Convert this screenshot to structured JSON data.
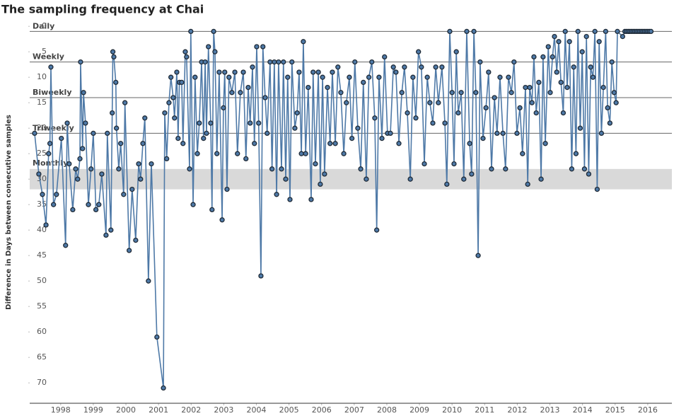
{
  "chart_data": {
    "type": "line",
    "title": "The sampling frequency at Chai",
    "y_label": "Difference in Days between consecutive samples",
    "reverse_y": true,
    "color": "#4e79a7",
    "marker_edge": "#1f2a36",
    "band_color": "#d9d9d9",
    "xlim": [
      1997.55,
      2017.24
    ],
    "xticks": [
      {
        "value": 1998.5,
        "label": "1998"
      },
      {
        "value": 1999.5,
        "label": "1999"
      },
      {
        "value": 2000.5,
        "label": "2000"
      },
      {
        "value": 2001.5,
        "label": "2001"
      },
      {
        "value": 2002.5,
        "label": "2002"
      },
      {
        "value": 2003.5,
        "label": "2003"
      },
      {
        "value": 2004.5,
        "label": "2004"
      },
      {
        "value": 2005.5,
        "label": "2005"
      },
      {
        "value": 2006.5,
        "label": "2006"
      },
      {
        "value": 2007.5,
        "label": "2007"
      },
      {
        "value": 2008.5,
        "label": "2008"
      },
      {
        "value": 2009.5,
        "label": "2009"
      },
      {
        "value": 2010.5,
        "label": "2010"
      },
      {
        "value": 2011.5,
        "label": "2011"
      },
      {
        "value": 2012.5,
        "label": "2012"
      },
      {
        "value": 2013.5,
        "label": "2013"
      },
      {
        "value": 2014.5,
        "label": "2014"
      },
      {
        "value": 2015.5,
        "label": "2015"
      },
      {
        "value": 2016.5,
        "label": "2016"
      }
    ],
    "ylim": [
      -1,
      74
    ],
    "yticks": [
      0,
      5,
      10,
      15,
      20,
      25,
      30,
      35,
      40,
      45,
      50,
      55,
      60,
      65,
      70
    ],
    "reference_lines": [
      {
        "label": "Daily",
        "value": 1
      },
      {
        "label": "Weekly",
        "value": 7
      },
      {
        "label": "Biweekly",
        "value": 14
      },
      {
        "label": "Triweekly",
        "value": 21
      }
    ],
    "band": {
      "label": "Monthly",
      "from": 28,
      "to": 32
    },
    "x": [
      1997.7,
      1997.83,
      1997.94,
      1998.05,
      1998.13,
      1998.17,
      1998.2,
      1998.28,
      1998.37,
      1998.52,
      1998.65,
      1998.7,
      1998.76,
      1998.87,
      1998.96,
      1999.02,
      1999.09,
      1999.11,
      1999.17,
      1999.2,
      1999.26,
      1999.35,
      1999.43,
      1999.5,
      1999.58,
      1999.67,
      1999.76,
      1999.89,
      1999.93,
      2000.04,
      2000.08,
      2000.1,
      2000.13,
      2000.19,
      2000.21,
      2000.28,
      2000.34,
      2000.43,
      2000.47,
      2000.6,
      2000.69,
      2000.8,
      2000.89,
      2000.95,
      2001.02,
      2001.08,
      2001.19,
      2001.28,
      2001.45,
      2001.65,
      2001.69,
      2001.75,
      2001.82,
      2001.88,
      2001.95,
      2001.99,
      2002.06,
      2002.1,
      2002.14,
      2002.21,
      2002.25,
      2002.32,
      2002.36,
      2002.45,
      2002.49,
      2002.56,
      2002.62,
      2002.69,
      2002.75,
      2002.82,
      2002.88,
      2002.93,
      2002.97,
      2003.03,
      2003.1,
      2003.14,
      2003.19,
      2003.23,
      2003.29,
      2003.36,
      2003.45,
      2003.49,
      2003.53,
      2003.6,
      2003.66,
      2003.75,
      2003.84,
      2003.92,
      2004.01,
      2004.1,
      2004.18,
      2004.25,
      2004.31,
      2004.38,
      2004.44,
      2004.51,
      2004.57,
      2004.64,
      2004.7,
      2004.77,
      2004.83,
      2004.92,
      2004.98,
      2005.05,
      2005.12,
      2005.18,
      2005.27,
      2005.33,
      2005.4,
      2005.46,
      2005.53,
      2005.59,
      2005.68,
      2005.75,
      2005.81,
      2005.88,
      2005.94,
      2006.01,
      2006.09,
      2006.18,
      2006.24,
      2006.31,
      2006.4,
      2006.46,
      2006.53,
      2006.59,
      2006.68,
      2006.76,
      2006.83,
      2006.92,
      2007.0,
      2007.09,
      2007.18,
      2007.26,
      2007.35,
      2007.43,
      2007.52,
      2007.61,
      2007.7,
      2007.78,
      2007.87,
      2007.95,
      2008.04,
      2008.13,
      2008.19,
      2008.26,
      2008.35,
      2008.43,
      2008.52,
      2008.61,
      2008.7,
      2008.78,
      2008.87,
      2008.96,
      2009.04,
      2009.13,
      2009.22,
      2009.3,
      2009.39,
      2009.47,
      2009.56,
      2009.65,
      2009.74,
      2009.82,
      2009.91,
      2010.0,
      2010.08,
      2010.19,
      2010.28,
      2010.34,
      2010.43,
      2010.5,
      2010.56,
      2010.63,
      2010.69,
      2010.78,
      2010.86,
      2010.95,
      2011.04,
      2011.1,
      2011.17,
      2011.23,
      2011.3,
      2011.36,
      2011.45,
      2011.54,
      2011.62,
      2011.71,
      2011.8,
      2011.88,
      2011.97,
      2012.06,
      2012.14,
      2012.23,
      2012.32,
      2012.4,
      2012.49,
      2012.58,
      2012.66,
      2012.75,
      2012.82,
      2012.88,
      2012.95,
      2013.01,
      2013.08,
      2013.16,
      2013.23,
      2013.29,
      2013.36,
      2013.45,
      2013.51,
      2013.58,
      2013.64,
      2013.71,
      2013.77,
      2013.84,
      2013.91,
      2013.97,
      2014.03,
      2014.1,
      2014.17,
      2014.23,
      2014.3,
      2014.36,
      2014.43,
      2014.49,
      2014.56,
      2014.62,
      2014.69,
      2014.75,
      2014.82,
      2014.88,
      2014.95,
      2015.01,
      2015.08,
      2015.14,
      2015.21,
      2015.27,
      2015.34,
      2015.4,
      2015.47,
      2015.53,
      2015.57,
      2015.73,
      2015.8,
      2015.85,
      2015.9,
      2015.95,
      2016.0,
      2016.05,
      2016.1,
      2016.15,
      2016.2,
      2016.25,
      2016.3,
      2016.35,
      2016.4,
      2016.45,
      2016.5,
      2016.55,
      2016.6
    ],
    "values": [
      21,
      29,
      33,
      39,
      25,
      23,
      8,
      35,
      33,
      22,
      43,
      19,
      27,
      36,
      28,
      30,
      26,
      7,
      24,
      13,
      19,
      35,
      28,
      21,
      36,
      35,
      29,
      41,
      21,
      40,
      17,
      5,
      6,
      11,
      20,
      28,
      23,
      33,
      15,
      44,
      32,
      42,
      27,
      30,
      23,
      18,
      50,
      27,
      61,
      71,
      17,
      26,
      15,
      10,
      14,
      18,
      9,
      22,
      11,
      11,
      23,
      5,
      6,
      28,
      1,
      35,
      10,
      25,
      19,
      7,
      22,
      7,
      21,
      4,
      19,
      36,
      1,
      5,
      25,
      9,
      38,
      16,
      9,
      32,
      10,
      13,
      9,
      25,
      13,
      9,
      26,
      12,
      19,
      8,
      23,
      4,
      19,
      49,
      4,
      14,
      21,
      7,
      28,
      7,
      33,
      7,
      28,
      7,
      30,
      10,
      34,
      7,
      20,
      17,
      9,
      25,
      3,
      25,
      12,
      34,
      9,
      27,
      9,
      31,
      10,
      29,
      12,
      23,
      9,
      23,
      8,
      13,
      25,
      15,
      10,
      22,
      7,
      20,
      28,
      11,
      30,
      10,
      7,
      18,
      40,
      10,
      22,
      6,
      21,
      21,
      8,
      9,
      23,
      13,
      8,
      17,
      30,
      10,
      18,
      5,
      8,
      27,
      10,
      15,
      19,
      8,
      15,
      8,
      19,
      31,
      1,
      13,
      27,
      5,
      17,
      13,
      30,
      1,
      23,
      29,
      1,
      13,
      45,
      7,
      22,
      16,
      9,
      28,
      14,
      21,
      10,
      21,
      28,
      10,
      13,
      7,
      21,
      16,
      25,
      12,
      31,
      12,
      15,
      6,
      17,
      11,
      30,
      6,
      23,
      4,
      13,
      6,
      2,
      9,
      3,
      11,
      17,
      1,
      12,
      3,
      28,
      8,
      25,
      1,
      20,
      5,
      28,
      2,
      29,
      8,
      10,
      1,
      32,
      3,
      21,
      12,
      1,
      16,
      19,
      7,
      13,
      15,
      1,
      2,
      1,
      1,
      1,
      1,
      1,
      1,
      1,
      1,
      1,
      1,
      1,
      1,
      1,
      1,
      1,
      1,
      1
    ]
  }
}
